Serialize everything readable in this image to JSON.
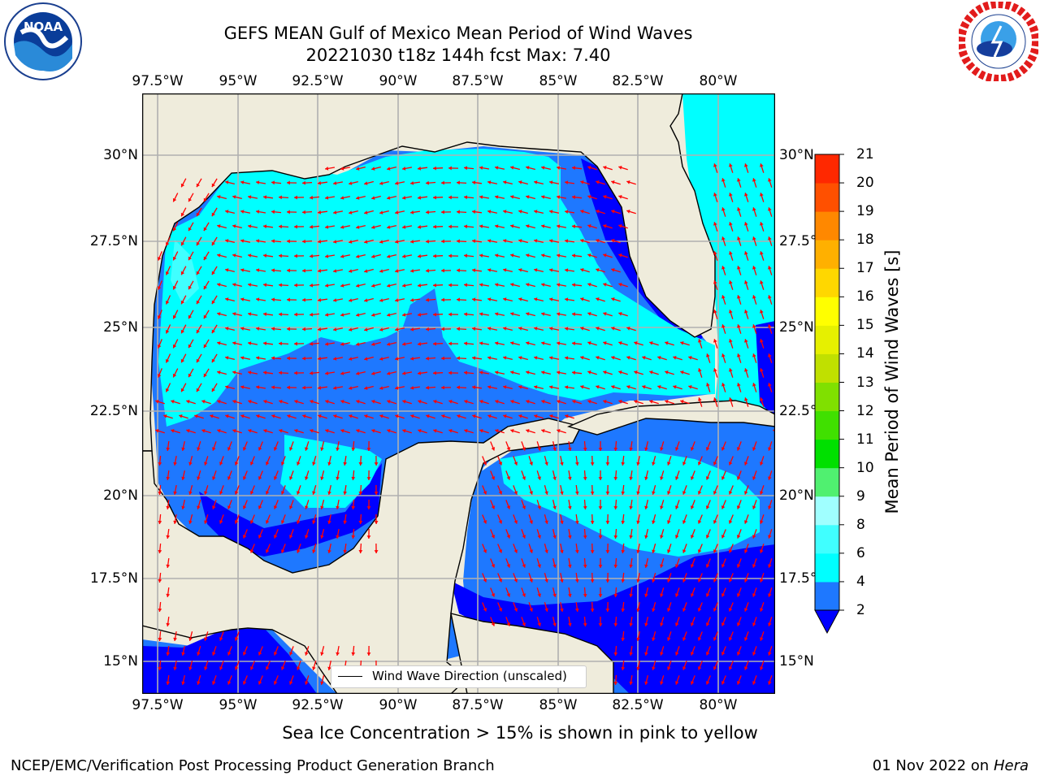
{
  "header": {
    "title_line1": "GEFS MEAN Gulf of Mexico Mean Period of Wind Waves",
    "title_line2": "20221030 t18z 144h fcst   Max: 7.40"
  },
  "logos": {
    "left": {
      "name": "noaa-logo",
      "text": "NOAA",
      "ring_text": "NATIONAL OCEANIC AND ATMOSPHERIC ADMINISTRATION · U.S. DEPARTMENT OF COMMERCE"
    },
    "right": {
      "name": "nws-logo",
      "ring_text": "NATIONAL WEATHER SERVICE"
    }
  },
  "map": {
    "lon_labels": [
      "97.5°W",
      "95°W",
      "92.5°W",
      "90°W",
      "87.5°W",
      "85°W",
      "82.5°W",
      "80°W"
    ],
    "lat_labels": [
      "30°N",
      "27.5°N",
      "25°N",
      "22.5°N",
      "20°N",
      "17.5°N",
      "15°N"
    ],
    "colors": {
      "land": "#efecdc",
      "coast": "#000000",
      "grid": "#b0b0b0",
      "arrow": "#ff0000"
    },
    "legend_label": "Wind Wave Direction (unscaled)"
  },
  "colorbar": {
    "label": "Mean Period of Wind Waves [s]",
    "ticks": [
      "2",
      "4",
      "6",
      "8",
      "9",
      "10",
      "11",
      "12",
      "13",
      "14",
      "15",
      "16",
      "17",
      "18",
      "19",
      "20",
      "21"
    ],
    "colors": [
      "#1e78ff",
      "#00ffff",
      "#40ffff",
      "#a0ffff",
      "#50f070",
      "#00e000",
      "#40e000",
      "#80e000",
      "#c0e000",
      "#e6f000",
      "#ffff00",
      "#ffd700",
      "#ffb000",
      "#ff8800",
      "#ff5000",
      "#ff2800",
      "#ff0000"
    ],
    "under_color": "#0000ff"
  },
  "caption": "Sea Ice Concentration > 15% is shown in pink to yellow",
  "footer": {
    "left": "NCEP/EMC/Verification Post Processing Product Generation Branch",
    "right_date": "01 Nov 2022 on",
    "right_host": "Hera"
  }
}
